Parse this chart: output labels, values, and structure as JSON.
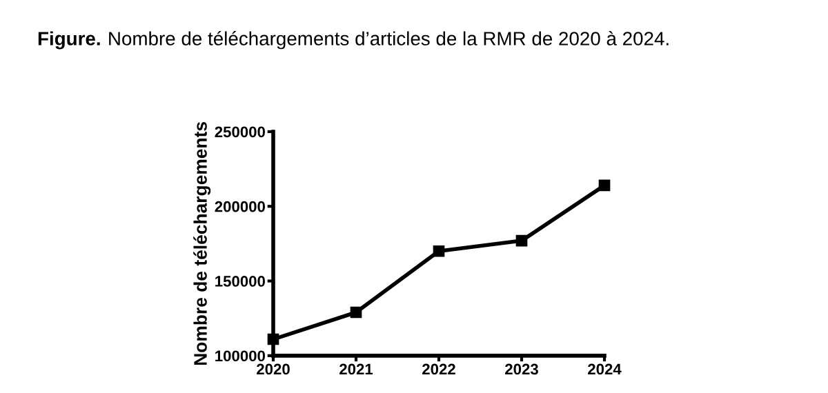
{
  "chart_data": {
    "type": "line",
    "title": "Figure.",
    "subtitle": "Nombre de téléchargements d’articles de la RMR de 2020 à 2024.",
    "ylabel": "Nombre de téléchargements",
    "x": [
      2020,
      2021,
      2022,
      2023,
      2024
    ],
    "series": [
      {
        "color": "#000000",
        "values": [
          111000,
          129000,
          170000,
          177000,
          214000
        ]
      }
    ],
    "xlim": [
      2020,
      2024
    ],
    "xticks": [
      2020,
      2021,
      2022,
      2023,
      2024
    ],
    "ylim": [
      100000,
      250000
    ],
    "yticks": [
      100000,
      150000,
      200000,
      250000
    ],
    "marker": "square",
    "line_style": "solid",
    "grid": false,
    "legend": false
  }
}
